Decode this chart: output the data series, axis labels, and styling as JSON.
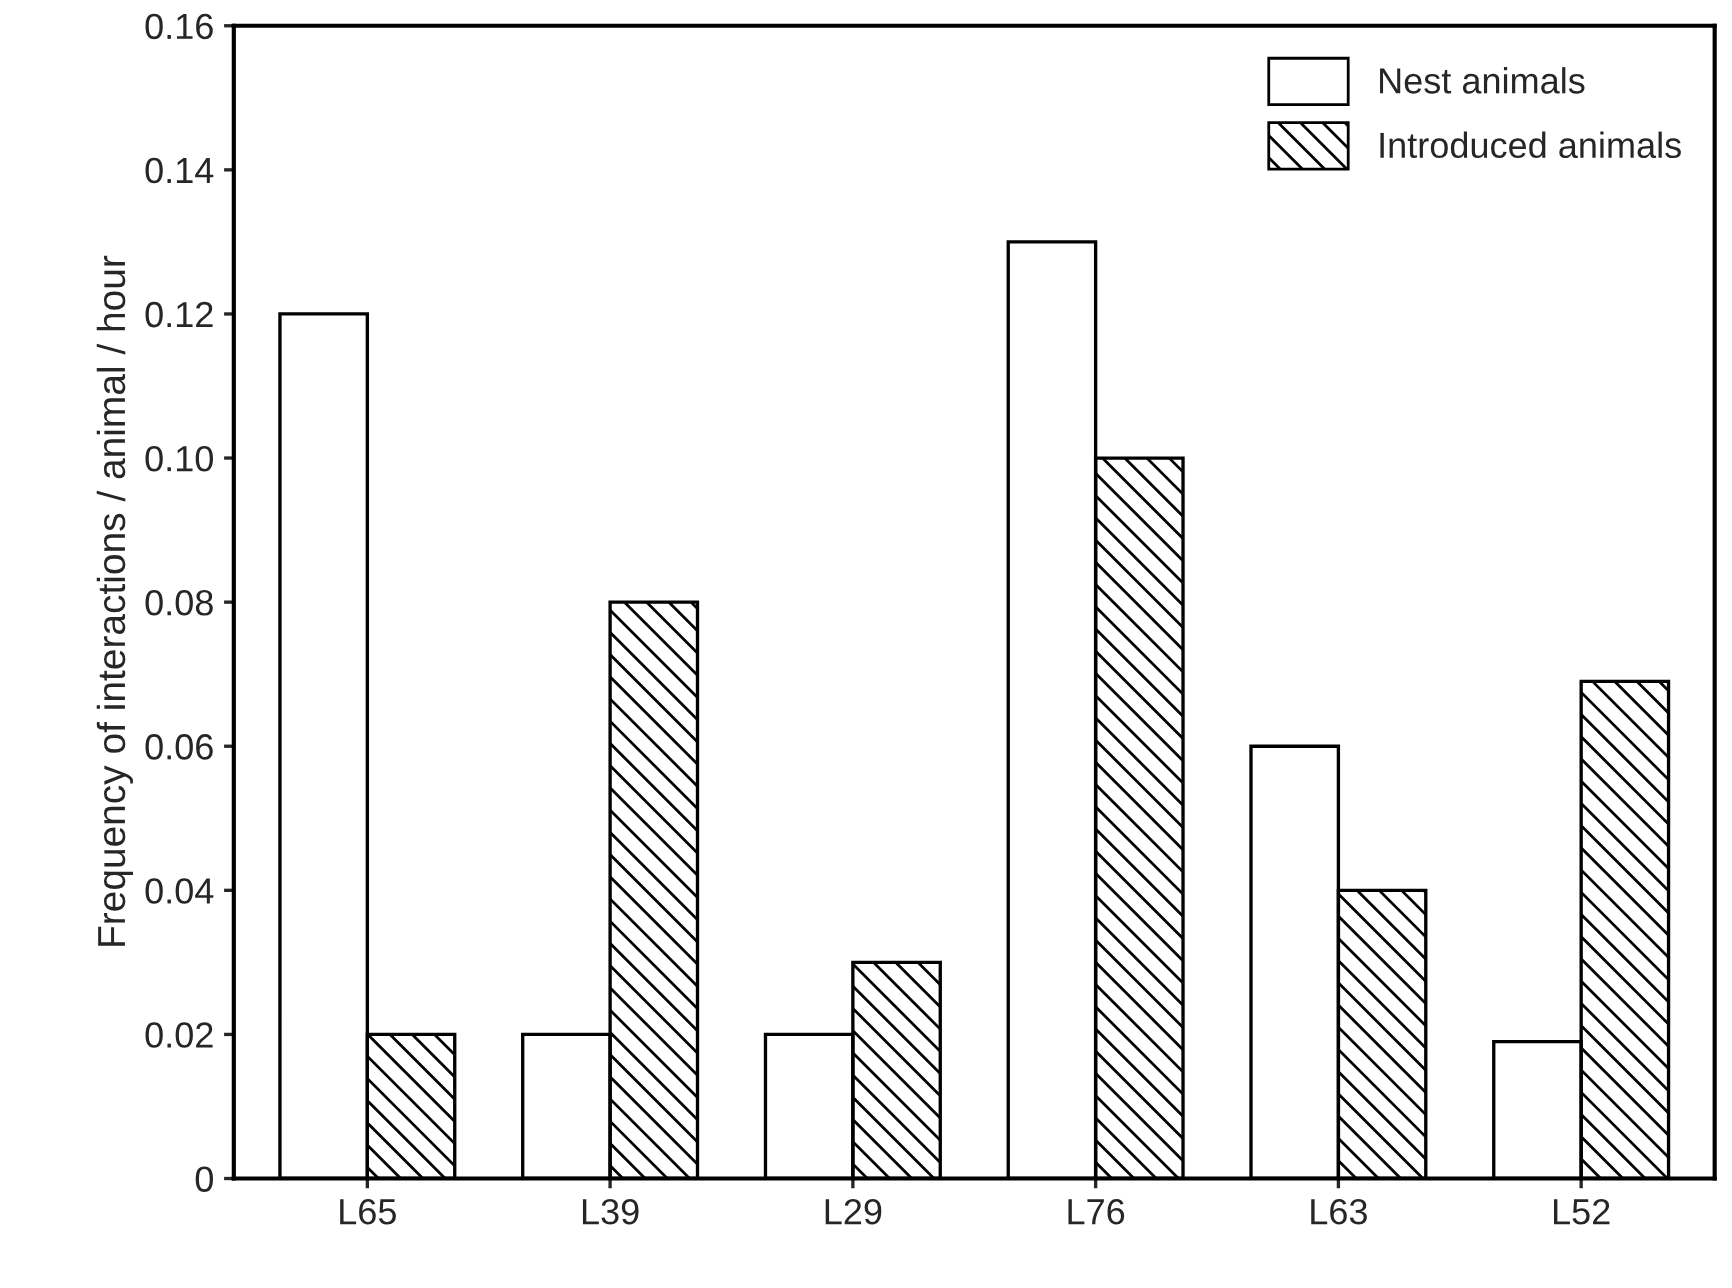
{
  "chart_data": {
    "type": "bar",
    "ylabel": "Frequency of interactions / animal / hour",
    "categories": [
      "L65",
      "L39",
      "L29",
      "L76",
      "L63",
      "L52"
    ],
    "series": [
      {
        "name": "Nest animals",
        "color": "#ffffff",
        "values": [
          0.12,
          0.02,
          0.02,
          0.13,
          0.06,
          0.019
        ]
      },
      {
        "name": "Introduced animals",
        "color": "#000000",
        "values": [
          0.02,
          0.08,
          0.03,
          0.1,
          0.04,
          0.069
        ]
      }
    ],
    "ylim": [
      0,
      0.16
    ],
    "yticks": [
      0,
      {
        "value": 0.02,
        "label": "0.02"
      },
      {
        "value": 0.04,
        "label": "0.04"
      },
      {
        "value": 0.06,
        "label": "0.06"
      },
      {
        "value": 0.08,
        "label": "0.08"
      },
      {
        "value": 0.1,
        "label": "0.10"
      },
      {
        "value": 0.12,
        "label": "0.12"
      },
      {
        "value": 0.14,
        "label": "0.14"
      },
      {
        "value": 0.16,
        "label": "0.16"
      }
    ],
    "grid": false,
    "legend": "top right"
  }
}
